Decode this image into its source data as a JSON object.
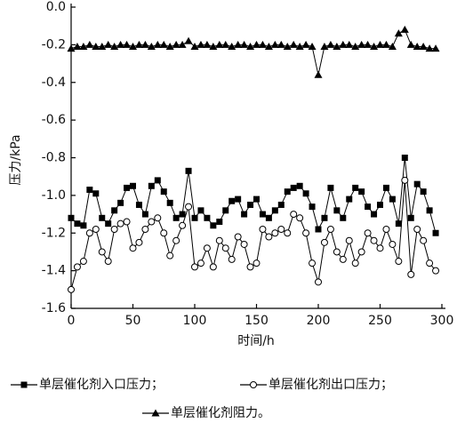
{
  "chart_data": {
    "type": "line",
    "xlabel": "时间/h",
    "ylabel": "压力/kPa",
    "x": [
      0,
      5,
      10,
      15,
      20,
      25,
      30,
      35,
      40,
      45,
      50,
      55,
      60,
      65,
      70,
      75,
      80,
      85,
      90,
      95,
      100,
      105,
      110,
      115,
      120,
      125,
      130,
      135,
      140,
      145,
      150,
      155,
      160,
      165,
      170,
      175,
      180,
      185,
      190,
      195,
      200,
      205,
      210,
      215,
      220,
      225,
      230,
      235,
      240,
      245,
      250,
      255,
      260,
      265,
      270,
      275,
      280,
      285,
      290,
      295
    ],
    "series": [
      {
        "name": "单层催化剂入口压力",
        "color": "#000000",
        "marker": "square",
        "values": [
          -1.12,
          -1.15,
          -1.16,
          -0.97,
          -0.99,
          -1.12,
          -1.15,
          -1.08,
          -1.04,
          -0.96,
          -0.95,
          -1.05,
          -1.1,
          -0.95,
          -0.92,
          -0.98,
          -1.04,
          -1.12,
          -1.1,
          -0.87,
          -1.12,
          -1.08,
          -1.12,
          -1.16,
          -1.14,
          -1.08,
          -1.03,
          -1.02,
          -1.1,
          -1.05,
          -1.02,
          -1.1,
          -1.12,
          -1.08,
          -1.05,
          -0.98,
          -0.96,
          -0.95,
          -0.99,
          -1.06,
          -1.18,
          -1.12,
          -0.96,
          -1.08,
          -1.12,
          -1.02,
          -0.96,
          -0.98,
          -1.06,
          -1.1,
          -1.05,
          -0.96,
          -1.02,
          -1.15,
          -0.8,
          -1.12,
          -0.94,
          -0.98,
          -1.08,
          -1.2
        ]
      },
      {
        "name": "单层催化剂出口压力",
        "color": "#000000",
        "marker": "circle",
        "values": [
          -1.5,
          -1.38,
          -1.35,
          -1.2,
          -1.18,
          -1.3,
          -1.35,
          -1.18,
          -1.15,
          -1.14,
          -1.28,
          -1.25,
          -1.18,
          -1.14,
          -1.12,
          -1.2,
          -1.32,
          -1.24,
          -1.16,
          -1.06,
          -1.38,
          -1.36,
          -1.28,
          -1.38,
          -1.24,
          -1.28,
          -1.34,
          -1.22,
          -1.26,
          -1.38,
          -1.36,
          -1.18,
          -1.22,
          -1.2,
          -1.18,
          -1.2,
          -1.1,
          -1.12,
          -1.2,
          -1.36,
          -1.46,
          -1.25,
          -1.18,
          -1.3,
          -1.34,
          -1.24,
          -1.36,
          -1.3,
          -1.2,
          -1.24,
          -1.28,
          -1.18,
          -1.26,
          -1.35,
          -0.92,
          -1.42,
          -1.18,
          -1.24,
          -1.36,
          -1.4
        ]
      },
      {
        "name": "单层催化剂阻力",
        "color": "#000000",
        "marker": "triangle",
        "values": [
          -0.22,
          -0.21,
          -0.21,
          -0.2,
          -0.21,
          -0.21,
          -0.2,
          -0.21,
          -0.2,
          -0.2,
          -0.21,
          -0.2,
          -0.2,
          -0.21,
          -0.2,
          -0.2,
          -0.21,
          -0.2,
          -0.2,
          -0.18,
          -0.21,
          -0.2,
          -0.2,
          -0.21,
          -0.2,
          -0.2,
          -0.21,
          -0.2,
          -0.2,
          -0.21,
          -0.2,
          -0.2,
          -0.21,
          -0.2,
          -0.2,
          -0.21,
          -0.2,
          -0.21,
          -0.2,
          -0.21,
          -0.36,
          -0.21,
          -0.2,
          -0.21,
          -0.2,
          -0.2,
          -0.21,
          -0.2,
          -0.2,
          -0.21,
          -0.2,
          -0.2,
          -0.21,
          -0.14,
          -0.12,
          -0.2,
          -0.21,
          -0.21,
          -0.22,
          -0.22
        ]
      }
    ],
    "legend_punctuation": [
      "；",
      "；",
      "。"
    ],
    "xlim": [
      0,
      300
    ],
    "xticks": [
      0,
      50,
      100,
      150,
      200,
      250,
      300
    ],
    "ylim": [
      -1.6,
      0
    ],
    "yticks": [
      {
        "value": 0,
        "label": "0.0"
      },
      -0.2,
      -0.4,
      -0.6,
      -0.8,
      {
        "value": -1,
        "label": "-1.0"
      },
      -1.2,
      -1.4,
      -1.6
    ],
    "grid": false
  }
}
